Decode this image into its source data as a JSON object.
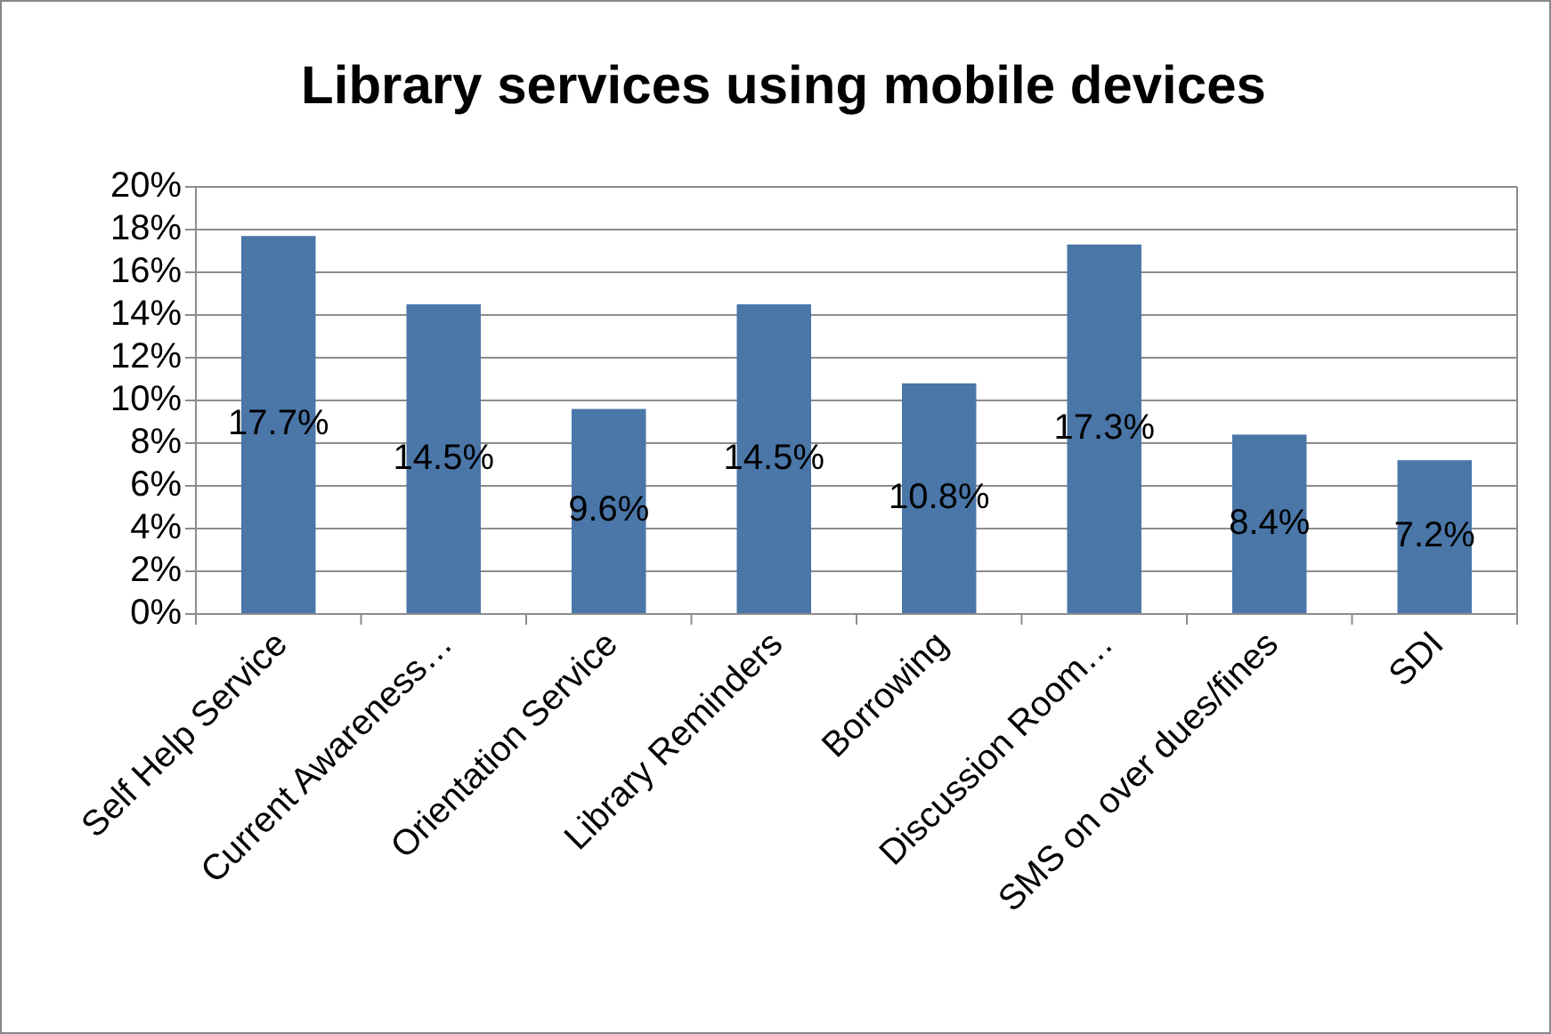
{
  "chart_data": {
    "type": "bar",
    "title": "Library services using mobile devices",
    "categories": [
      "Self Help Service",
      "Current Awareness…",
      "Orientation Service",
      "Library Reminders",
      "Borrowing",
      "Discussion Room…",
      "SMS on over dues/fines",
      "SDI"
    ],
    "values": [
      17.7,
      14.5,
      9.6,
      14.5,
      10.8,
      17.3,
      8.4,
      7.2
    ],
    "value_labels": [
      "17.7%",
      "14.5%",
      "9.6%",
      "14.5%",
      "10.8%",
      "17.3%",
      "8.4%",
      "7.2%"
    ],
    "color": "#4a76a8",
    "ylim": [
      0,
      20
    ],
    "yticks": [
      {
        "value": 0,
        "label": "0%"
      },
      {
        "value": 2,
        "label": "2%"
      },
      {
        "value": 4,
        "label": "4%"
      },
      {
        "value": 6,
        "label": "6%"
      },
      {
        "value": 8,
        "label": "8%"
      },
      {
        "value": 10,
        "label": "10%"
      },
      {
        "value": 12,
        "label": "12%"
      },
      {
        "value": 14,
        "label": "14%"
      },
      {
        "value": 16,
        "label": "16%"
      },
      {
        "value": 18,
        "label": "18%"
      },
      {
        "value": 20,
        "label": "20%"
      }
    ],
    "grid": "y"
  }
}
